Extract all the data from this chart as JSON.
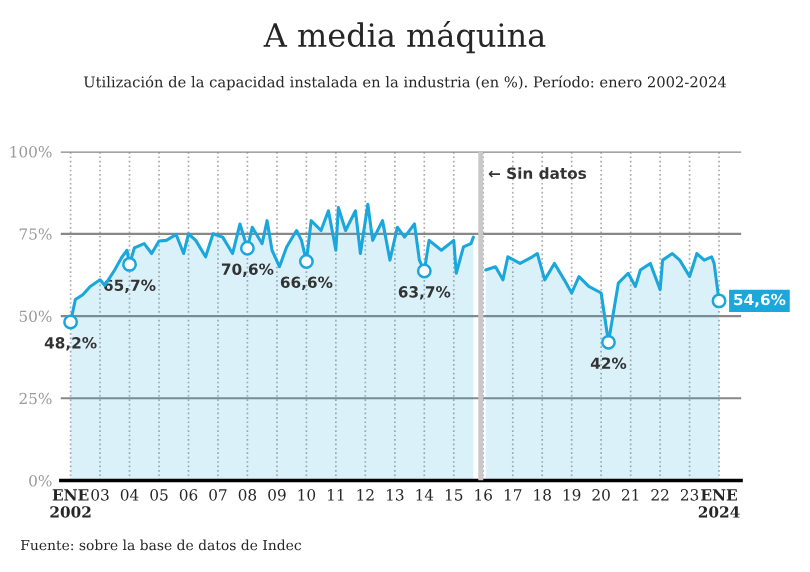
{
  "chart_data": {
    "type": "area",
    "title": "A media máquina",
    "subtitle": "Utilización de la capacidad instalada en la industria (en %). Período: enero 2002-2024",
    "annotations": [
      "Fuente: sobre la base de datos de Indec"
    ],
    "series": [
      {
        "color": "#1ba6dc",
        "x": [
          "2002-01",
          "2002-03",
          "2002-06",
          "2002-09",
          "2003-01",
          "2003-03",
          "2003-07",
          "2003-10",
          "2003-12",
          "2004-01",
          "2004-03",
          "2004-07",
          "2004-10",
          "2005-01",
          "2005-04",
          "2005-08",
          "2005-11",
          "2006-01",
          "2006-04",
          "2006-08",
          "2006-11",
          "2007-03",
          "2007-07",
          "2007-10",
          "2008-01",
          "2008-03",
          "2008-07",
          "2008-09",
          "2008-11",
          "2009-02",
          "2009-05",
          "2009-09",
          "2009-11",
          "2010-01",
          "2010-03",
          "2010-07",
          "2010-10",
          "2011-01",
          "2011-02",
          "2011-05",
          "2011-09",
          "2011-11",
          "2012-02",
          "2012-04",
          "2012-08",
          "2012-11",
          "2013-02",
          "2013-05",
          "2013-09",
          "2013-11",
          "2014-01",
          "2014-03",
          "2014-08",
          "2015-01",
          "2015-02",
          "2015-05",
          "2015-08",
          "2015-09",
          "2015-12",
          "2016-01",
          "2016-02",
          "2016-06",
          "2016-09",
          "2016-11",
          "2017-04",
          "2017-09",
          "2017-11",
          "2018-02",
          "2018-06",
          "2018-10",
          "2019-01",
          "2019-04",
          "2019-08",
          "2020-01",
          "2020-04",
          "2020-08",
          "2020-12",
          "2021-03",
          "2021-05",
          "2021-09",
          "2022-01",
          "2022-02",
          "2022-06",
          "2022-09",
          "2023-01",
          "2023-04",
          "2023-07",
          "2023-10",
          "2023-11",
          "2024-01"
        ],
        "values": [
          48.2,
          55,
          56.5,
          59,
          61,
          59.3,
          64,
          68,
          70,
          65.7,
          70.7,
          72,
          69,
          72.8,
          73,
          74.8,
          69,
          75,
          73,
          68,
          75,
          74,
          69,
          78,
          70.6,
          77,
          72,
          79,
          70,
          65,
          71,
          76,
          73,
          66.6,
          79,
          76,
          82,
          70,
          83,
          76,
          82,
          69,
          84,
          73,
          79,
          67,
          77,
          74,
          78,
          67,
          63.7,
          73,
          70,
          73,
          63,
          71,
          72,
          74,
          null,
          null,
          64,
          65,
          61,
          68,
          66,
          68,
          69,
          61,
          66,
          61,
          57,
          62,
          59,
          57,
          42,
          60,
          63,
          59,
          64,
          66,
          58,
          67,
          69,
          67,
          62,
          69,
          67,
          68,
          66,
          54.6
        ]
      },
      {
        "type": "scatter",
        "marker": "circle",
        "color": "#1ba6dc",
        "x": [
          "2002-01",
          "2004-01",
          "2008-01",
          "2010-01",
          "2014-01",
          "2020-04",
          "2024-01"
        ],
        "values": [
          48.2,
          65.7,
          70.6,
          66.6,
          63.7,
          42,
          54.6
        ],
        "value_labels": [
          "48,2%",
          "65,7%",
          "70,6%",
          "66,6%",
          "63,7%",
          "42%",
          "54,6%"
        ]
      }
    ],
    "xlim": [
      "2001-09",
      "2024-10"
    ],
    "xticks": [
      {
        "value": "2002-01",
        "label": "ENE\n2002"
      },
      {
        "value": "2003-01",
        "label": "03"
      },
      {
        "value": "2004-01",
        "label": "04"
      },
      {
        "value": "2005-01",
        "label": "05"
      },
      {
        "value": "2006-01",
        "label": "06"
      },
      {
        "value": "2007-01",
        "label": "07"
      },
      {
        "value": "2008-01",
        "label": "08"
      },
      {
        "value": "2009-01",
        "label": "09"
      },
      {
        "value": "2010-01",
        "label": "10"
      },
      {
        "value": "2011-01",
        "label": "11"
      },
      {
        "value": "2012-01",
        "label": "12"
      },
      {
        "value": "2013-01",
        "label": "13"
      },
      {
        "value": "2014-01",
        "label": "14"
      },
      {
        "value": "2015-01",
        "label": "15"
      },
      {
        "value": "2016-01",
        "label": "16"
      },
      {
        "value": "2017-01",
        "label": "17"
      },
      {
        "value": "2018-01",
        "label": "18"
      },
      {
        "value": "2019-01",
        "label": "19"
      },
      {
        "value": "2020-01",
        "label": "20"
      },
      {
        "value": "2021-01",
        "label": "21"
      },
      {
        "value": "2022-01",
        "label": "22"
      },
      {
        "value": "2023-01",
        "label": "23"
      },
      {
        "value": "2024-01",
        "label": "ENE\n2024"
      }
    ],
    "ylim": [
      0,
      100
    ],
    "yticks": [
      {
        "value": 0,
        "label": "0%"
      },
      {
        "value": 25,
        "label": "25%"
      },
      {
        "value": 50,
        "label": "50%"
      },
      {
        "value": 75,
        "label": "75%"
      },
      {
        "value": 100,
        "label": "100%"
      }
    ],
    "bands": [
      {
        "axis": "x",
        "from": "2015-11",
        "to": "2016-01",
        "label": "← Sin datos",
        "color": "#c8c8c8"
      }
    ],
    "grid": true,
    "legend": false
  }
}
